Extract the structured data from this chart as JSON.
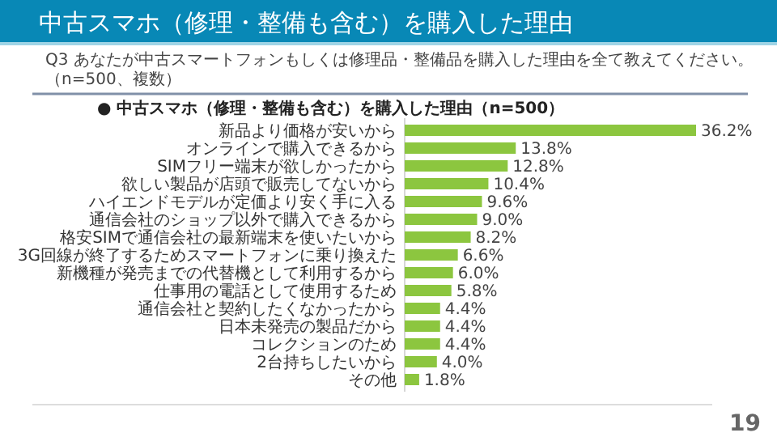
{
  "chart_data": {
    "type": "bar",
    "orientation": "horizontal",
    "title": "中古スマホ（修理・整備も含む）を購入した理由",
    "subtitle": "Q3 あなたが中古スマートフォンもしくは修理品・整備品を購入した理由を全て教えてください。（n=500、複数）",
    "annotations": [
      "● 中古スマホ（修理・整備も含む）を購入した理由（n=500）",
      "19"
    ],
    "categories": [
      "新品より価格が安いから",
      "オンラインで購入できるから",
      "SIMフリー端末が欲しかったから",
      "欲しい製品が店頭で販売してないから",
      "ハイエンドモデルが定価より安く手に入る",
      "通信会社のショップ以外で購入できるから",
      "格安SIMで通信会社の最新端末を使いたいから",
      "3G回線が終了するためスマートフォンに乗り換えた",
      "新機種が発売までの代替機として利用するから",
      "仕事用の電話として使用するため",
      "通信会社と契約したくなかったから",
      "日本未発売の製品だから",
      "コレクションのため",
      "2台持ちしたいから",
      "その他"
    ],
    "values": [
      36.2,
      13.8,
      12.8,
      10.4,
      9.6,
      9.0,
      8.2,
      6.6,
      6.0,
      5.8,
      4.4,
      4.4,
      4.4,
      4.0,
      1.8
    ],
    "value_labels": [
      "36.2%",
      "13.8%",
      "12.8%",
      "10.4%",
      "9.6%",
      "9.0%",
      "8.2%",
      "6.6%",
      "6.0%",
      "5.8%",
      "4.4%",
      "4.4%",
      "4.4%",
      "4.0%",
      "1.8%"
    ],
    "color": "#8cc63f"
  }
}
